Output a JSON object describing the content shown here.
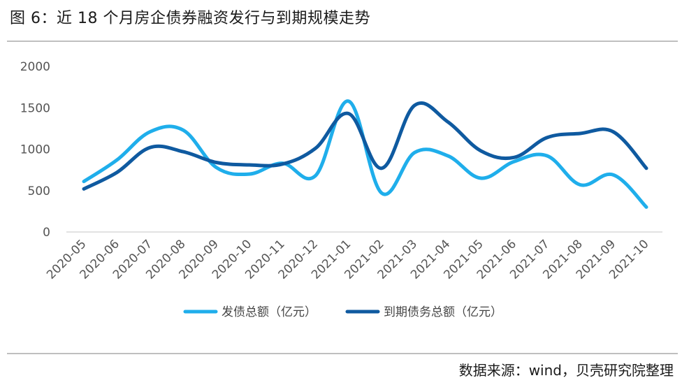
{
  "title": "图 6：近 18 个月房企债券融资发行与到期规模走势",
  "source": "数据来源：wind，贝壳研究院整理",
  "colors": {
    "issuance": "#1FAEEB",
    "maturity": "#0F5AA0",
    "axis": "#d9d9d9"
  },
  "chart_data": {
    "type": "line",
    "categories": [
      "2020-05",
      "2020-06",
      "2020-07",
      "2020-08",
      "2020-09",
      "2020-10",
      "2020-11",
      "2020-12",
      "2021-01",
      "2021-02",
      "2021-03",
      "2021-04",
      "2021-05",
      "2021-06",
      "2021-07",
      "2021-08",
      "2021-09",
      "2021-10"
    ],
    "series": [
      {
        "name": "发债总额（亿元）",
        "color": "#1FAEEB",
        "values": [
          610,
          870,
          1210,
          1230,
          780,
          700,
          830,
          680,
          1580,
          470,
          960,
          920,
          650,
          850,
          920,
          570,
          690,
          300
        ]
      },
      {
        "name": "到期债务总额（亿元）",
        "color": "#0F5AA0",
        "values": [
          520,
          720,
          1020,
          970,
          840,
          810,
          820,
          1010,
          1430,
          770,
          1530,
          1330,
          980,
          900,
          1140,
          1190,
          1210,
          770
        ]
      }
    ],
    "ylim": [
      0,
      2000
    ],
    "yticks": [
      0,
      500,
      1000,
      1500,
      2000
    ],
    "xlabel": "",
    "ylabel": "",
    "legend": "bottom"
  }
}
